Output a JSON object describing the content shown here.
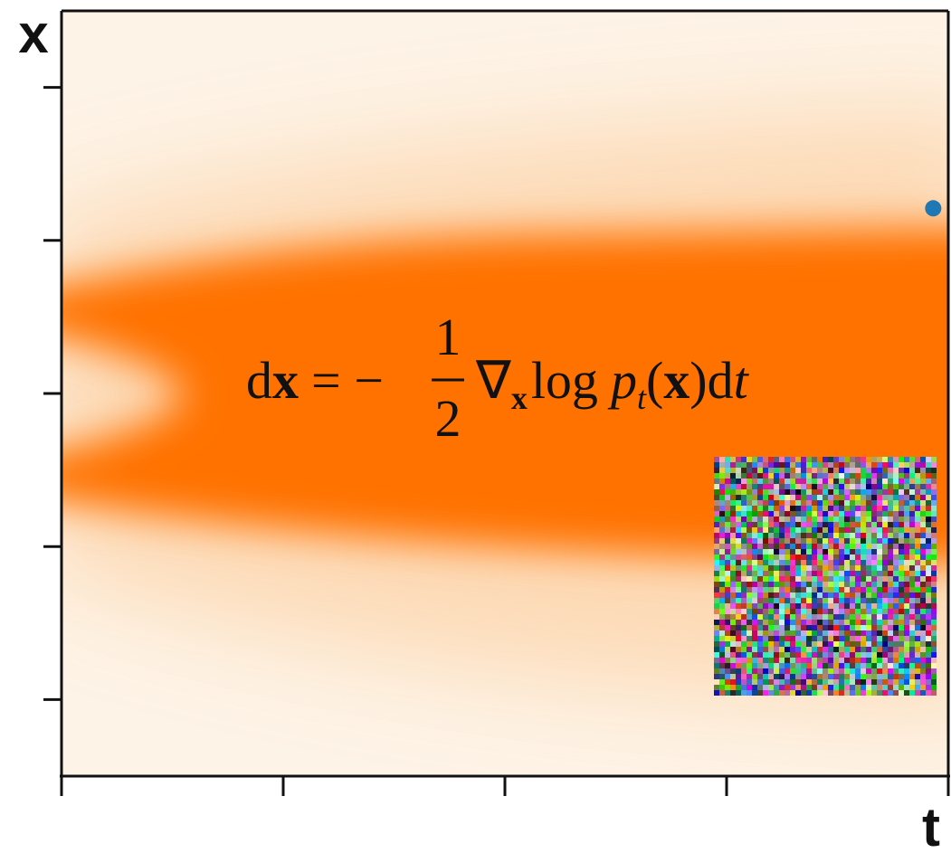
{
  "chart_data": {
    "type": "scatter",
    "x_label": "x",
    "t_label": "t",
    "xlim": [
      0,
      1
    ],
    "xticks": [
      0,
      0.25,
      0.5,
      0.75,
      1
    ],
    "ylim": [
      -2.5,
      2.5
    ],
    "yticks": [
      -2,
      -1,
      0,
      1,
      2
    ],
    "series": [
      {
        "color": "#1f77b4",
        "x": [
          0.983
        ],
        "values": [
          1.21
        ]
      }
    ],
    "equation": {
      "d1": "d",
      "x1": "x",
      "equals": "= −",
      "numerator": "1",
      "denominator": "2",
      "nabla": "∇",
      "nabla_sub": "x",
      "log": "log",
      "p": "p",
      "p_sub": "t",
      "open": "(",
      "x2": "x",
      "close": ")",
      "d2": "d",
      "t": "t"
    }
  }
}
